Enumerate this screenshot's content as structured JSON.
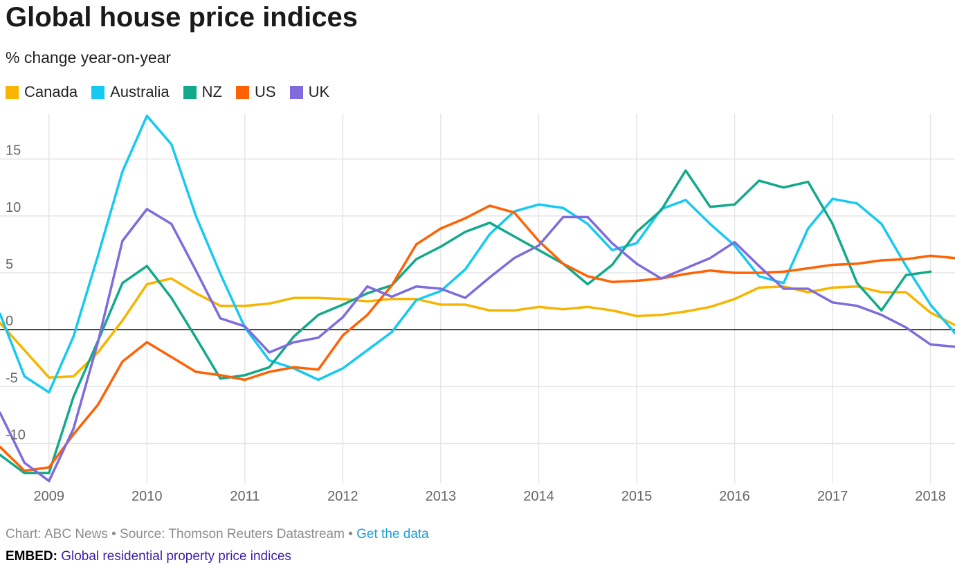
{
  "title": "Global house price indices",
  "subtitle": "% change year-on-year",
  "footer": {
    "credit": "Chart: ABC News • Source: Thomson Reuters Datastream • ",
    "link_label": "Get the data"
  },
  "embed": {
    "label": "EMBED:",
    "link_label": "Global residential property price indices"
  },
  "colors": {
    "Canada": "#f7b500",
    "Australia": "#16c9f2",
    "NZ": "#12a98a",
    "US": "#ff6103",
    "UK": "#7f6bdc",
    "gridline": "#e5e5e5",
    "zero_line": "#000000"
  },
  "chart_data": {
    "type": "line",
    "title": "Global house price indices",
    "subtitle": "% change year-on-year",
    "xlabel": "",
    "ylabel": "",
    "grid": true,
    "legend_position": "top-left",
    "xlim": [
      "2008-07",
      "2018-04"
    ],
    "ylim": [
      -13.5,
      19
    ],
    "x_ticks": [
      "2009",
      "2010",
      "2011",
      "2012",
      "2013",
      "2014",
      "2015",
      "2016",
      "2017",
      "2018"
    ],
    "y_ticks": [
      -10,
      -5,
      0,
      5,
      10,
      15
    ],
    "x": [
      "2008-Q3",
      "2008-Q4",
      "2009-Q1",
      "2009-Q2",
      "2009-Q3",
      "2009-Q4",
      "2010-Q1",
      "2010-Q2",
      "2010-Q3",
      "2010-Q4",
      "2011-Q1",
      "2011-Q2",
      "2011-Q3",
      "2011-Q4",
      "2012-Q1",
      "2012-Q2",
      "2012-Q3",
      "2012-Q4",
      "2013-Q1",
      "2013-Q2",
      "2013-Q3",
      "2013-Q4",
      "2014-Q1",
      "2014-Q2",
      "2014-Q3",
      "2014-Q4",
      "2015-Q1",
      "2015-Q2",
      "2015-Q3",
      "2015-Q4",
      "2016-Q1",
      "2016-Q2",
      "2016-Q3",
      "2016-Q4",
      "2017-Q1",
      "2017-Q2",
      "2017-Q3",
      "2017-Q4",
      "2018-Q1",
      "2018-Q2"
    ],
    "series": [
      {
        "name": "Canada",
        "values": [
          0.6,
          -1.8,
          -4.2,
          -4.1,
          -2.0,
          0.8,
          4.0,
          4.5,
          3.2,
          2.1,
          2.1,
          2.3,
          2.8,
          2.8,
          2.7,
          2.5,
          2.7,
          2.7,
          2.2,
          2.2,
          1.7,
          1.7,
          2.0,
          1.8,
          2.0,
          1.7,
          1.2,
          1.3,
          1.6,
          2.0,
          2.7,
          3.7,
          3.8,
          3.3,
          3.7,
          3.8,
          3.3,
          3.3,
          1.5,
          0.4
        ]
      },
      {
        "name": "Australia",
        "values": [
          1.4,
          -4.1,
          -5.5,
          -0.6,
          6.5,
          13.9,
          18.8,
          16.3,
          10.0,
          4.9,
          0.2,
          -2.7,
          -3.4,
          -4.4,
          -3.4,
          -1.8,
          -0.2,
          2.6,
          3.4,
          5.3,
          8.4,
          10.4,
          11.0,
          10.7,
          9.3,
          7.0,
          7.6,
          10.6,
          11.4,
          9.3,
          7.4,
          4.7,
          4.1,
          8.9,
          11.5,
          11.1,
          9.3,
          5.6,
          2.2,
          -0.3
        ]
      },
      {
        "name": "NZ",
        "values": [
          -11.0,
          -12.6,
          -12.6,
          -5.9,
          -1.0,
          4.1,
          5.6,
          2.8,
          -0.7,
          -4.3,
          -4.0,
          -3.3,
          -0.6,
          1.3,
          2.2,
          3.2,
          3.9,
          6.2,
          7.3,
          8.6,
          9.4,
          8.2,
          7.0,
          5.8,
          4.0,
          5.7,
          8.6,
          10.5,
          14.0,
          10.8,
          11.0,
          13.1,
          12.5,
          13.0,
          9.3,
          4.1,
          1.7,
          4.8,
          5.1,
          null
        ]
      },
      {
        "name": "US",
        "values": [
          -10.3,
          -12.4,
          -12.1,
          -9.2,
          -6.6,
          -2.8,
          -1.1,
          -2.4,
          -3.7,
          -4.0,
          -4.4,
          -3.7,
          -3.3,
          -3.5,
          -0.5,
          1.3,
          3.9,
          7.5,
          8.9,
          9.8,
          10.9,
          10.3,
          7.8,
          5.8,
          4.7,
          4.2,
          4.3,
          4.5,
          4.9,
          5.2,
          5.0,
          5.0,
          5.1,
          5.4,
          5.7,
          5.8,
          6.1,
          6.2,
          6.5,
          6.3
        ]
      },
      {
        "name": "UK",
        "values": [
          -7.3,
          -11.7,
          -13.3,
          -8.7,
          -1.1,
          7.8,
          10.6,
          9.3,
          5.2,
          1.0,
          0.3,
          -2.0,
          -1.1,
          -0.7,
          1.1,
          3.8,
          2.9,
          3.8,
          3.6,
          2.8,
          4.6,
          6.3,
          7.4,
          9.9,
          9.9,
          7.6,
          5.8,
          4.5,
          5.4,
          6.3,
          7.7,
          5.6,
          3.6,
          3.6,
          2.4,
          2.1,
          1.3,
          0.2,
          -1.3,
          -1.5
        ]
      }
    ]
  }
}
